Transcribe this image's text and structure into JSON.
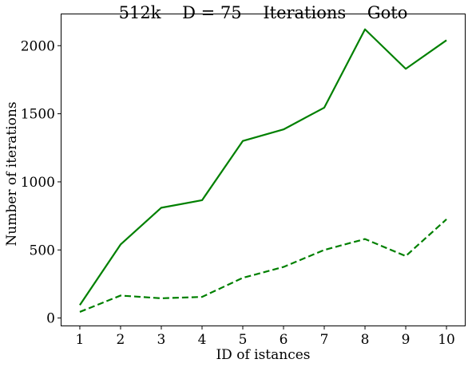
{
  "chart_data": {
    "type": "line",
    "title": "512k    D = 75    Iterations    Goto",
    "xlabel": "ID of istances",
    "ylabel": "Number of iterations",
    "x": [
      1,
      2,
      3,
      4,
      5,
      6,
      7,
      8,
      9,
      10
    ],
    "xticks": [
      "1",
      "2",
      "3",
      "4",
      "5",
      "6",
      "7",
      "8",
      "9",
      "10"
    ],
    "yticks": [
      0,
      500,
      1000,
      1500,
      2000
    ],
    "ytick_labels": [
      "0",
      "500",
      "1000",
      "1500",
      "2000"
    ],
    "xlim": [
      0.55,
      10.45
    ],
    "ylim": [
      -55,
      2230
    ],
    "grid": false,
    "series": [
      {
        "values": [
          95,
          540,
          810,
          865,
          1300,
          1385,
          1545,
          2120,
          1830,
          2040
        ],
        "color": "#008000",
        "style": "solid"
      },
      {
        "values": [
          45,
          165,
          145,
          155,
          295,
          375,
          500,
          580,
          455,
          725
        ],
        "color": "#008000",
        "style": "dashed"
      }
    ]
  }
}
